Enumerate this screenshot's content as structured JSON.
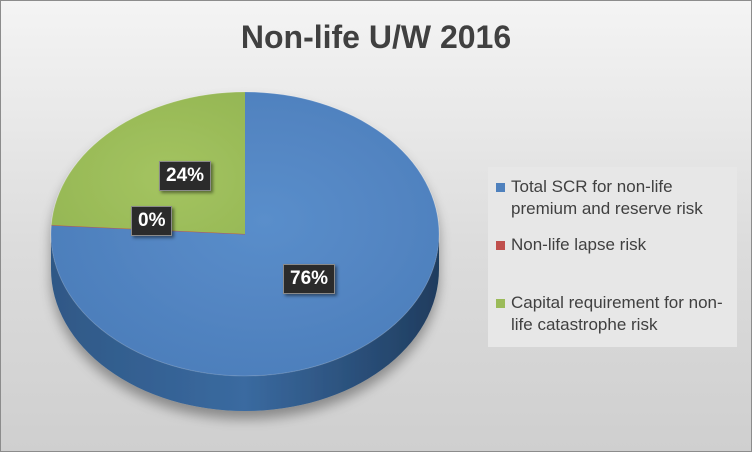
{
  "chart_data": {
    "type": "pie",
    "title": "Non-life U/W 2016",
    "categories": [
      "Total SCR for non-life premium and reserve risk",
      "Non-life lapse risk",
      "Capital requirement for non-life catastrophe risk"
    ],
    "values": [
      76,
      0,
      24
    ],
    "data_labels": [
      "76%",
      "0%",
      "24%"
    ],
    "colors": [
      "#4f81bd",
      "#c0504d",
      "#9bbb59"
    ],
    "legend_position": "right",
    "style": "3d"
  },
  "legend": {
    "items": [
      {
        "lines": [
          "Total SCR for non-life",
          "premium and reserve risk"
        ],
        "color": "#4f81bd"
      },
      {
        "lines": [
          "Non-life lapse risk"
        ],
        "color": "#c0504d"
      },
      {
        "lines": [
          "Capital requirement for non-",
          "life catastrophe risk"
        ],
        "color": "#9bbb59"
      }
    ]
  }
}
